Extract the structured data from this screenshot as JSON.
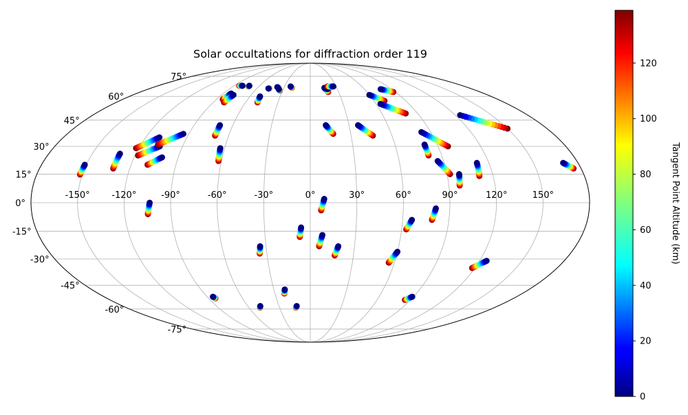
{
  "chart_data": {
    "type": "scatter",
    "projection": "mollweide",
    "title": "Solar occultations for diffraction order 119",
    "grid": true,
    "lon_ticks": [
      {
        "value": -150,
        "label": "-150°"
      },
      {
        "value": -120,
        "label": "-120°"
      },
      {
        "value": -90,
        "label": "-90°"
      },
      {
        "value": -60,
        "label": "-60°"
      },
      {
        "value": -30,
        "label": "-30°"
      },
      {
        "value": 0,
        "label": "0°"
      },
      {
        "value": 30,
        "label": "30°"
      },
      {
        "value": 60,
        "label": "60°"
      },
      {
        "value": 90,
        "label": "90°"
      },
      {
        "value": 120,
        "label": "120°"
      },
      {
        "value": 150,
        "label": "150°"
      }
    ],
    "lat_ticks": [
      {
        "value": 75,
        "label": "75°"
      },
      {
        "value": 60,
        "label": "60°"
      },
      {
        "value": 45,
        "label": "45°"
      },
      {
        "value": 30,
        "label": "30°"
      },
      {
        "value": 15,
        "label": "15°"
      },
      {
        "value": 0,
        "label": "0°"
      },
      {
        "value": -15,
        "label": "-15°"
      },
      {
        "value": -30,
        "label": "-30°"
      },
      {
        "value": -45,
        "label": "-45°"
      },
      {
        "value": -60,
        "label": "-60°"
      },
      {
        "value": -75,
        "label": "-75°"
      }
    ],
    "colorbar": {
      "label": "Tangent Point Altitude (km)",
      "colormap": "jet",
      "range": [
        0,
        139
      ],
      "ticks": [
        {
          "value": 0,
          "label": "0"
        },
        {
          "value": 20,
          "label": "20"
        },
        {
          "value": 40,
          "label": "40"
        },
        {
          "value": 60,
          "label": "60"
        },
        {
          "value": 80,
          "label": "80"
        },
        {
          "value": 100,
          "label": "100"
        },
        {
          "value": 120,
          "label": "120"
        }
      ]
    },
    "tracks": [
      {
        "start": [
          -151.5,
          14.8
        ],
        "end": [
          -151.0,
          20.0
        ]
      },
      {
        "start": [
          -131,
          18
        ],
        "end": [
          -131,
          26
        ]
      },
      {
        "start": [
          -118,
          25
        ],
        "end": [
          -106,
          30
        ]
      },
      {
        "start": [
          -122,
          29
        ],
        "end": [
          -110,
          35
        ]
      },
      {
        "start": [
          -108,
          31
        ],
        "end": [
          -94,
          37
        ]
      },
      {
        "start": [
          -109,
          20
        ],
        "end": [
          -101,
          24
        ]
      },
      {
        "start": [
          -105,
          -6
        ],
        "end": [
          -103.5,
          0
        ]
      },
      {
        "start": [
          -84,
          58
        ],
        "end": [
          -82,
          62
        ]
      },
      {
        "start": [
          -80,
          56
        ],
        "end": [
          -78,
          61
        ]
      },
      {
        "start": [
          -84,
          67.5
        ],
        "end": [
          -80,
          67.5
        ]
      },
      {
        "start": [
          -72,
          67
        ],
        "end": [
          -72,
          67.5
        ]
      },
      {
        "start": [
          -70,
          36
        ],
        "end": [
          -70,
          42
        ]
      },
      {
        "start": [
          -62,
          22
        ],
        "end": [
          -63,
          29
        ]
      },
      {
        "start": [
          -49,
          56
        ],
        "end": [
          -50,
          60
        ]
      },
      {
        "start": [
          -46,
          65.5
        ],
        "end": [
          -47,
          65.5
        ]
      },
      {
        "start": [
          -36,
          66
        ],
        "end": [
          -38,
          66.5
        ]
      },
      {
        "start": [
          -33,
          64
        ],
        "end": [
          -35,
          65
        ]
      },
      {
        "start": [
          -21,
          66
        ],
        "end": [
          -23,
          67
        ]
      },
      {
        "start": [
          19,
          63
        ],
        "end": [
          16,
          66
        ]
      },
      {
        "start": [
          22,
          66
        ],
        "end": [
          19,
          65
        ]
      },
      {
        "start": [
          20,
          67
        ],
        "end": [
          27,
          67
        ]
      },
      {
        "start": [
          17,
          37
        ],
        "end": [
          12,
          42
        ]
      },
      {
        "start": [
          46,
          36
        ],
        "end": [
          37,
          42
        ]
      },
      {
        "start": [
          70,
          57
        ],
        "end": [
          60,
          61
        ]
      },
      {
        "start": [
          80,
          49
        ],
        "end": [
          64,
          55
        ]
      },
      {
        "start": [
          88,
          63
        ],
        "end": [
          78,
          65
        ]
      },
      {
        "start": [
          97,
          30
        ],
        "end": [
          83,
          38
        ]
      },
      {
        "start": [
          81,
          25
        ],
        "end": [
          81,
          31
        ]
      },
      {
        "start": [
          92,
          15
        ],
        "end": [
          86,
          22
        ]
      },
      {
        "start": [
          97,
          9
        ],
        "end": [
          98,
          15
        ]
      },
      {
        "start": [
          111,
          14
        ],
        "end": [
          112,
          21
        ]
      },
      {
        "start": [
          150,
          40
        ],
        "end": [
          124,
          48
        ]
      },
      {
        "start": [
          175,
          18
        ],
        "end": [
          170,
          21
        ]
      },
      {
        "start": [
          7,
          -4
        ],
        "end": [
          9,
          2
        ]
      },
      {
        "start": [
          -7,
          -18
        ],
        "end": [
          -6,
          -13
        ]
      },
      {
        "start": [
          6,
          -23
        ],
        "end": [
          8,
          -17
        ]
      },
      {
        "start": [
          17,
          -28
        ],
        "end": [
          19,
          -23
        ]
      },
      {
        "start": [
          -35,
          -27
        ],
        "end": [
          -34,
          -23
        ]
      },
      {
        "start": [
          -22,
          -50
        ],
        "end": [
          -21,
          -47.5
        ]
      },
      {
        "start": [
          -14,
          -59
        ],
        "end": [
          -13,
          -58
        ]
      },
      {
        "start": [
          -49,
          -59
        ],
        "end": [
          -48,
          -58
        ]
      },
      {
        "start": [
          -84,
          -53
        ],
        "end": [
          -85,
          -52
        ]
      },
      {
        "start": [
          63,
          -14
        ],
        "end": [
          66,
          -9
        ]
      },
      {
        "start": [
          79,
          -9
        ],
        "end": [
          81,
          -3
        ]
      },
      {
        "start": [
          56,
          -32
        ],
        "end": [
          60,
          -26
        ]
      },
      {
        "start": [
          118,
          -35
        ],
        "end": [
          125,
          -31
        ]
      },
      {
        "start": [
          85,
          -54
        ],
        "end": [
          89,
          -52
        ]
      }
    ]
  }
}
